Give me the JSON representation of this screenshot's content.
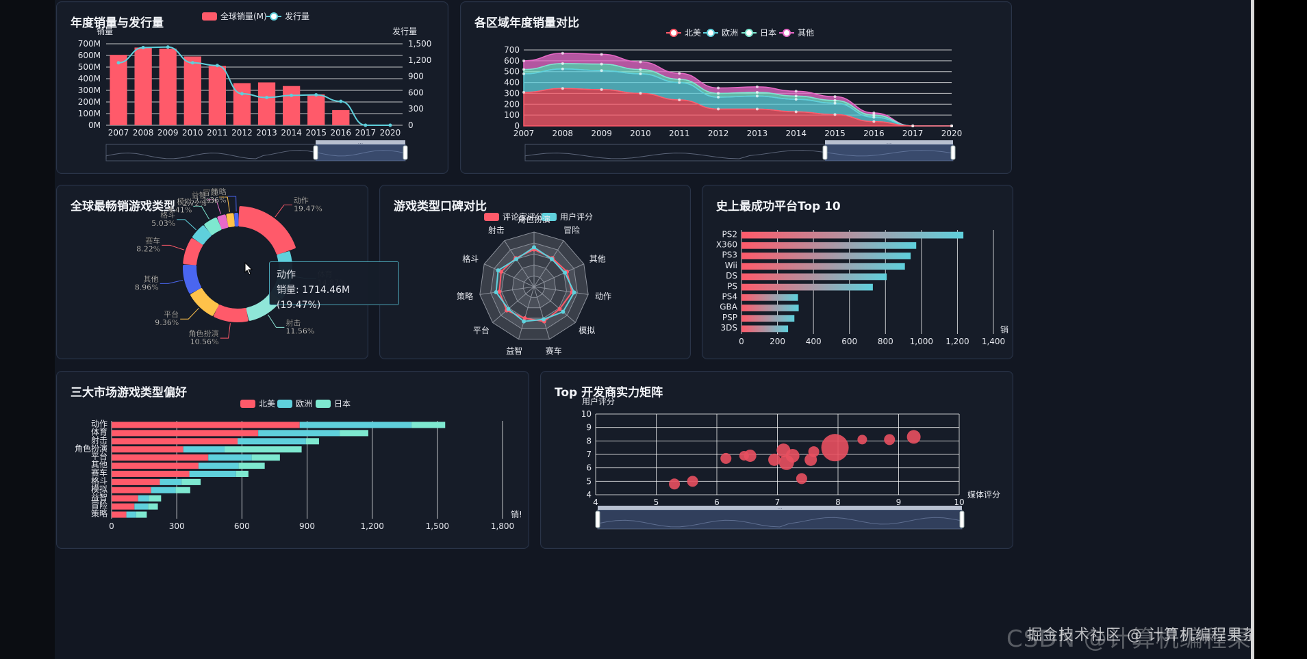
{
  "panels": {
    "annual": {
      "title": "年度销量与发行量",
      "legend": [
        "全球销量(M)",
        "发行量"
      ],
      "y_left_label": "销量",
      "y_right_label": "发行量",
      "colors": {
        "bar": "#ff5a6a",
        "line": "#5fd0dc"
      },
      "chart_data": {
        "type": "bar",
        "categories": [
          "2007",
          "2008",
          "2009",
          "2010",
          "2011",
          "2012",
          "2013",
          "2014",
          "2015",
          "2016",
          "2017",
          "2020"
        ],
        "series": [
          {
            "name": "全球销量(M)",
            "values": [
              605,
              668,
              658,
              591,
              510,
              362,
              368,
              337,
              265,
              130,
              0,
              0
            ]
          },
          {
            "name": "发行量",
            "values": [
              1150,
              1430,
              1440,
              1150,
              1100,
              580,
              510,
              550,
              560,
              440,
              0,
              0
            ]
          }
        ],
        "y_left_ticks": [
          "0M",
          "100M",
          "200M",
          "300M",
          "400M",
          "500M",
          "600M",
          "700M"
        ],
        "y_right_ticks": [
          "0",
          "300",
          "600",
          "900",
          "1,200",
          "1,500"
        ],
        "ylim_left": [
          0,
          700
        ],
        "ylim_right": [
          0,
          1500
        ]
      }
    },
    "regions": {
      "title": "各区域年度销量对比",
      "legend": [
        "北美",
        "欧洲",
        "日本",
        "其他"
      ],
      "colors": [
        "#ff5a6a",
        "#5fd0dc",
        "#7ee8d0",
        "#e86ac8"
      ],
      "chart_data": {
        "type": "area",
        "x": [
          "2007",
          "2008",
          "2009",
          "2010",
          "2011",
          "2012",
          "2013",
          "2014",
          "2015",
          "2016",
          "2017",
          "2020"
        ],
        "series": [
          {
            "name": "北美",
            "values": [
              310,
              345,
              335,
              300,
              240,
              155,
              155,
              130,
              105,
              40,
              0,
              0
            ]
          },
          {
            "name": "欧洲",
            "values": [
              170,
              180,
              175,
              180,
              160,
              110,
              120,
              115,
              105,
              40,
              0,
              0
            ]
          },
          {
            "name": "日本",
            "values": [
              40,
              50,
              60,
              40,
              30,
              35,
              35,
              30,
              25,
              20,
              0,
              0
            ]
          },
          {
            "name": "其他",
            "values": [
              80,
              95,
              90,
              70,
              55,
              50,
              50,
              45,
              35,
              20,
              0,
              0
            ]
          }
        ],
        "y_ticks": [
          "0",
          "100",
          "200",
          "300",
          "400",
          "500",
          "600",
          "700"
        ],
        "ylim": [
          0,
          700
        ]
      }
    },
    "genres": {
      "title": "全球最畅销游戏类型",
      "tooltip": {
        "name": "动作",
        "value": "销量: 1714.46M (19.47%)"
      },
      "chart_data": {
        "type": "pie",
        "slices": [
          {
            "name": "动作",
            "pct": "19.47%",
            "value": 19.47,
            "color": "#ff5a6a"
          },
          {
            "name": "体育",
            "pct": "14.87%",
            "value": 14.87,
            "color": "#5fd0dc"
          },
          {
            "name": "射击",
            "pct": "11.56%",
            "value": 11.56,
            "color": "#8fe6d8"
          },
          {
            "name": "角色扮演",
            "pct": "10.56%",
            "value": 10.56,
            "color": "#ff5a6a"
          },
          {
            "name": "平台",
            "pct": "9.36%",
            "value": 9.36,
            "color": "#ffc24a"
          },
          {
            "name": "其他",
            "pct": "8.96%",
            "value": 8.96,
            "color": "#4a66f0"
          },
          {
            "name": "赛车",
            "pct": "8.22%",
            "value": 8.22,
            "color": "#ff5a6a"
          },
          {
            "name": "格斗",
            "pct": "5.03%",
            "value": 5.03,
            "color": "#5fd0dc"
          },
          {
            "name": "模拟",
            "pct": "4.41%",
            "value": 4.41,
            "color": "#7ee8d0"
          },
          {
            "name": "益智",
            "pct": "2.72%",
            "value": 2.72,
            "color": "#e86ac8"
          },
          {
            "name": "冒险",
            "pct": "2.39%",
            "value": 2.39,
            "color": "#ffc24a"
          },
          {
            "name": "策略",
            "pct": "1.36%",
            "value": 1.36,
            "color": "#4a66f0"
          }
        ]
      }
    },
    "radar": {
      "title": "游戏类型口碑对比",
      "legend": [
        "评论家评分",
        "用户评分"
      ],
      "colors": [
        "#ff5a6a",
        "#5fd0dc"
      ],
      "chart_data": {
        "type": "radar",
        "indicators": [
          "角色扮演",
          "冒险",
          "其他",
          "动作",
          "模拟",
          "赛车",
          "益智",
          "平台",
          "策略",
          "格斗",
          "射击"
        ],
        "series": [
          {
            "name": "评论家评分",
            "values": [
              0.68,
              0.62,
              0.66,
              0.7,
              0.62,
              0.66,
              0.6,
              0.66,
              0.64,
              0.66,
              0.62
            ]
          },
          {
            "name": "用户评分",
            "values": [
              0.72,
              0.6,
              0.62,
              0.74,
              0.7,
              0.62,
              0.66,
              0.62,
              0.7,
              0.72,
              0.6
            ]
          }
        ]
      }
    },
    "platforms": {
      "title": "史上最成功平台Top 10",
      "chart_data": {
        "type": "bar",
        "orientation": "horizontal",
        "categories": [
          "PS2",
          "X360",
          "PS3",
          "Wii",
          "DS",
          "PS",
          "PS4",
          "GBA",
          "PSP",
          "3DS"
        ],
        "values": [
          1233,
          971,
          940,
          908,
          807,
          730,
          314,
          318,
          294,
          259
        ],
        "x_ticks": [
          "0",
          "200",
          "400",
          "600",
          "800",
          "1,000",
          "1,200",
          "1,400"
        ],
        "xlim": [
          0,
          1400
        ],
        "x_unit": "销"
      }
    },
    "markets": {
      "title": "三大市场游戏类型偏好",
      "legend": [
        "北美",
        "欧洲",
        "日本"
      ],
      "colors": [
        "#ff5a6a",
        "#5fd0dc",
        "#7ee8d0"
      ],
      "chart_data": {
        "type": "bar",
        "orientation": "horizontal",
        "stacked": true,
        "categories": [
          "动作",
          "体育",
          "射击",
          "角色扮演",
          "平台",
          "其他",
          "赛车",
          "格斗",
          "模拟",
          "益智",
          "冒险",
          "策略"
        ],
        "series": [
          {
            "name": "北美",
            "values": [
              866,
              675,
              580,
              330,
              445,
              400,
              358,
              222,
              182,
              122,
              105,
              68
            ]
          },
          {
            "name": "欧洲",
            "values": [
              515,
              375,
              315,
              190,
              200,
              185,
              215,
              100,
              113,
              50,
              63,
              45
            ]
          },
          {
            "name": "日本",
            "values": [
              155,
              132,
              60,
              355,
              130,
              120,
              57,
              88,
              67,
              56,
              45,
              49
            ]
          }
        ],
        "x_ticks": [
          "0",
          "300",
          "600",
          "900",
          "1,200",
          "1,500",
          "1,800"
        ],
        "xlim": [
          0,
          1800
        ],
        "x_unit": "销!"
      }
    },
    "developers": {
      "title": "Top 开发商实力矩阵",
      "y_label": "用户评分",
      "x_label": "媒体评分",
      "color": "#e8505f",
      "chart_data": {
        "type": "scatter",
        "xlim": [
          4,
          10
        ],
        "ylim": [
          4,
          10
        ],
        "x_ticks": [
          "4",
          "5",
          "6",
          "7",
          "8",
          "9",
          "10"
        ],
        "y_ticks": [
          "4",
          "5",
          "6",
          "7",
          "8",
          "9",
          "10"
        ],
        "points": [
          {
            "x": 5.3,
            "y": 4.8,
            "size": 8
          },
          {
            "x": 5.6,
            "y": 5.0,
            "size": 8
          },
          {
            "x": 6.15,
            "y": 6.7,
            "size": 8
          },
          {
            "x": 6.45,
            "y": 6.9,
            "size": 7
          },
          {
            "x": 6.55,
            "y": 6.9,
            "size": 9
          },
          {
            "x": 6.95,
            "y": 6.6,
            "size": 9
          },
          {
            "x": 7.1,
            "y": 7.3,
            "size": 10
          },
          {
            "x": 7.15,
            "y": 6.4,
            "size": 11
          },
          {
            "x": 7.25,
            "y": 6.9,
            "size": 10
          },
          {
            "x": 7.4,
            "y": 5.2,
            "size": 8
          },
          {
            "x": 7.55,
            "y": 6.6,
            "size": 9
          },
          {
            "x": 7.6,
            "y": 7.2,
            "size": 8
          },
          {
            "x": 7.95,
            "y": 7.5,
            "size": 20
          },
          {
            "x": 8.4,
            "y": 8.1,
            "size": 7
          },
          {
            "x": 8.85,
            "y": 8.1,
            "size": 8
          },
          {
            "x": 9.25,
            "y": 8.3,
            "size": 10
          }
        ]
      }
    }
  },
  "tick_suffix": "...",
  "watermark": {
    "back": "CSDN @计算机编程果茶熊",
    "front": "掘金技术社区 @ 计算机编程果茶熊"
  }
}
